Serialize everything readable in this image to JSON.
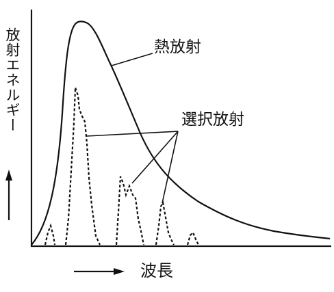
{
  "labels": {
    "thermal": "熱放射",
    "selective": "選択放射",
    "x_axis": "波長",
    "y_axis": "放射エネルギー"
  },
  "colors": {
    "ink": "#111111",
    "background": "#ffffff"
  },
  "arrows": {
    "x_axis_arrow": "right-arrow",
    "y_axis_arrow": "up-arrow"
  }
}
